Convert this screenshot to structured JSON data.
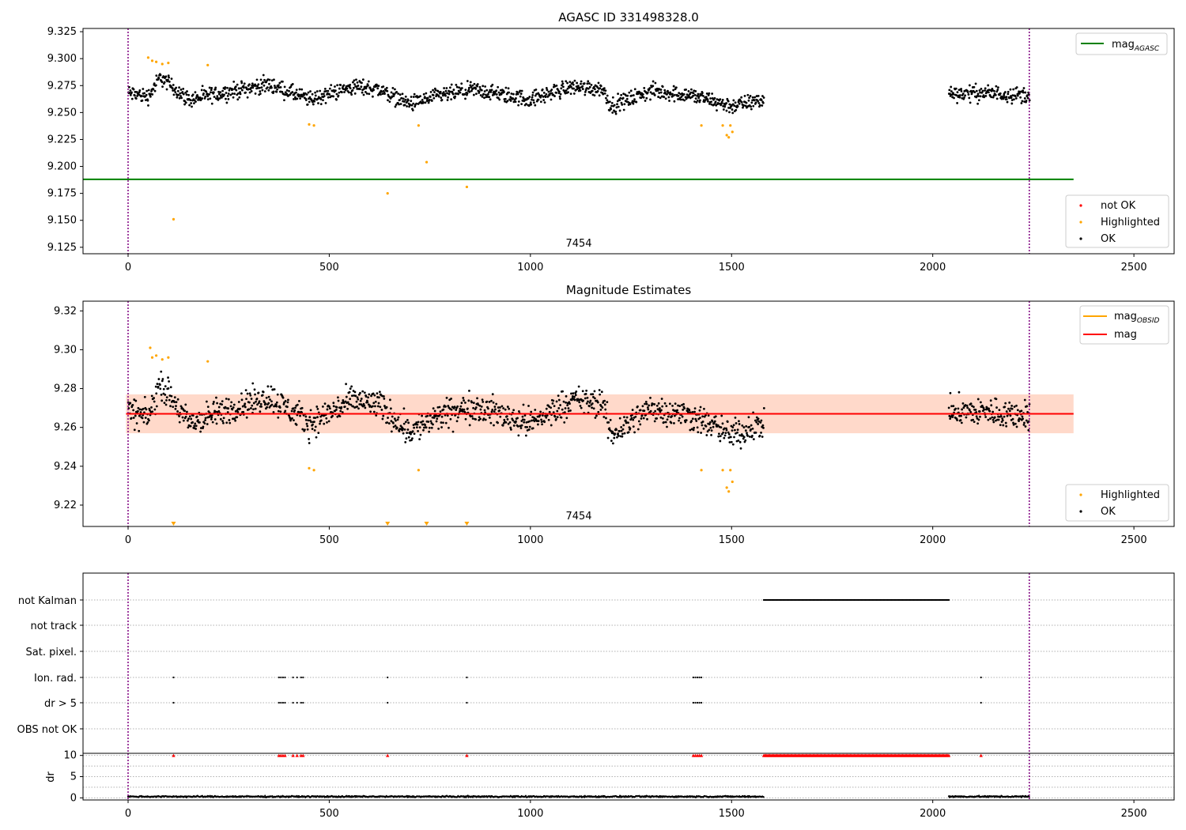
{
  "chart_data": [
    {
      "type": "scatter",
      "title": "AGASC ID 331498328.0",
      "annotation": "7454",
      "xlim": [
        -112,
        2600
      ],
      "ylim": [
        9.119,
        9.328
      ],
      "xticks": [
        "0",
        "500",
        "1000",
        "1500",
        "2000",
        "2500"
      ],
      "yticks": [
        "9.125",
        "9.150",
        "9.175",
        "9.200",
        "9.225",
        "9.250",
        "9.275",
        "9.300",
        "9.325"
      ],
      "grid": false,
      "vlines": [
        0,
        2240
      ],
      "legend_top": {
        "position": "top-right",
        "entries": [
          "mag_AGASC"
        ]
      },
      "legend_bottom": {
        "position": "lower-right",
        "entries": [
          "not OK",
          "Highlighted",
          "OK"
        ]
      },
      "hline": {
        "name": "mag_AGASC",
        "y": 9.188,
        "x_range": [
          -112,
          2350
        ],
        "color": "#008000"
      },
      "series": [
        {
          "name": "OK",
          "color": "#000000",
          "segments": [
            {
              "x_range": [
                0,
                1580
              ],
              "path": [
                [
                  0,
                  9.268
                ],
                [
                  50,
                  9.265
                ],
                [
                  80,
                  9.283
                ],
                [
                  150,
                  9.262
                ],
                [
                  260,
                  9.27
                ],
                [
                  350,
                  9.276
                ],
                [
                  450,
                  9.262
                ],
                [
                  560,
                  9.274
                ],
                [
                  620,
                  9.272
                ],
                [
                  700,
                  9.258
                ],
                [
                  780,
                  9.266
                ],
                [
                  860,
                  9.271
                ],
                [
                  1000,
                  9.262
                ],
                [
                  1100,
                  9.274
                ],
                [
                  1180,
                  9.272
                ],
                [
                  1200,
                  9.256
                ],
                [
                  1300,
                  9.27
                ],
                [
                  1400,
                  9.266
                ],
                [
                  1500,
                  9.256
                ],
                [
                  1580,
                  9.262
                ]
              ],
              "spread": 0.011
            },
            {
              "x_range": [
                2040,
                2240
              ],
              "path": [
                [
                  2040,
                  9.268
                ],
                [
                  2140,
                  9.268
                ],
                [
                  2240,
                  9.266
                ]
              ],
              "spread": 0.011
            }
          ]
        },
        {
          "name": "Highlighted",
          "color": "#ffa500",
          "points": [
            [
              50,
              9.301
            ],
            [
              60,
              9.298
            ],
            [
              70,
              9.297
            ],
            [
              85,
              9.295
            ],
            [
              100,
              9.296
            ],
            [
              113,
              9.151
            ],
            [
              198,
              9.294
            ],
            [
              450,
              9.239
            ],
            [
              462,
              9.238
            ],
            [
              645,
              9.175
            ],
            [
              722,
              9.238
            ],
            [
              742,
              9.204
            ],
            [
              842,
              9.181
            ],
            [
              1425,
              9.238
            ],
            [
              1478,
              9.238
            ],
            [
              1488,
              9.229
            ],
            [
              1493,
              9.227
            ],
            [
              1502,
              9.232
            ],
            [
              1497,
              9.238
            ]
          ]
        },
        {
          "name": "not OK",
          "color": "#ff0000",
          "points": []
        }
      ]
    },
    {
      "type": "scatter",
      "title": "Magnitude Estimates",
      "annotation": "7454",
      "xlim": [
        -112,
        2600
      ],
      "ylim": [
        9.209,
        9.325
      ],
      "xticks": [
        "0",
        "500",
        "1000",
        "1500",
        "2000",
        "2500"
      ],
      "yticks": [
        "9.22",
        "9.24",
        "9.26",
        "9.28",
        "9.30",
        "9.32"
      ],
      "grid": false,
      "vlines": [
        0,
        2240
      ],
      "legend_top": {
        "position": "top-right",
        "entries": [
          "mag_OBSID",
          "mag"
        ]
      },
      "legend_bottom": {
        "position": "lower-right",
        "entries": [
          "Highlighted",
          "OK"
        ]
      },
      "band": {
        "y": [
          9.257,
          9.277
        ],
        "x_range": [
          -5,
          2350
        ],
        "color": "#ffa07a"
      },
      "hline": {
        "name": "mag",
        "y": 9.267,
        "x_range": [
          -5,
          2350
        ],
        "color": "#ff0000"
      },
      "series": [
        {
          "name": "OK",
          "color": "#000000",
          "segments": [
            {
              "x_range": [
                0,
                1580
              ],
              "path": [
                [
                  0,
                  9.268
                ],
                [
                  50,
                  9.265
                ],
                [
                  80,
                  9.283
                ],
                [
                  150,
                  9.262
                ],
                [
                  260,
                  9.27
                ],
                [
                  350,
                  9.276
                ],
                [
                  450,
                  9.262
                ],
                [
                  560,
                  9.274
                ],
                [
                  620,
                  9.272
                ],
                [
                  700,
                  9.258
                ],
                [
                  780,
                  9.266
                ],
                [
                  860,
                  9.271
                ],
                [
                  1000,
                  9.262
                ],
                [
                  1100,
                  9.274
                ],
                [
                  1180,
                  9.272
                ],
                [
                  1200,
                  9.256
                ],
                [
                  1300,
                  9.27
                ],
                [
                  1400,
                  9.266
                ],
                [
                  1500,
                  9.256
                ],
                [
                  1580,
                  9.262
                ]
              ],
              "spread": 0.011
            },
            {
              "x_range": [
                2040,
                2240
              ],
              "path": [
                [
                  2040,
                  9.268
                ],
                [
                  2140,
                  9.268
                ],
                [
                  2240,
                  9.266
                ]
              ],
              "spread": 0.011
            }
          ]
        },
        {
          "name": "Highlighted",
          "color": "#ffa500",
          "points": [
            [
              55,
              9.301
            ],
            [
              60,
              9.296
            ],
            [
              70,
              9.297
            ],
            [
              85,
              9.295
            ],
            [
              100,
              9.296
            ],
            [
              198,
              9.294
            ],
            [
              450,
              9.239
            ],
            [
              462,
              9.238
            ],
            [
              722,
              9.238
            ],
            [
              1425,
              9.238
            ],
            [
              1478,
              9.238
            ],
            [
              1488,
              9.229
            ],
            [
              1493,
              9.227
            ],
            [
              1502,
              9.232
            ],
            [
              1497,
              9.238
            ]
          ]
        },
        {
          "name": "Highlighted (below axis)",
          "color": "#ffa500",
          "marker": "triangle-down",
          "points": [
            [
              113,
              9.209
            ],
            [
              645,
              9.209
            ],
            [
              742,
              9.209
            ],
            [
              842,
              9.209
            ]
          ]
        }
      ]
    },
    {
      "type": "scatter",
      "xlim": [
        -112,
        2600
      ],
      "xticks": [
        "0",
        "500",
        "1000",
        "1500",
        "2000",
        "2500"
      ],
      "vlines": [
        0,
        2240
      ],
      "flag_rows": [
        "not Kalman",
        "not track",
        "Sat. pixel.",
        "Ion. rad.",
        "dr > 5",
        "OBS not OK"
      ],
      "flags": {
        "not Kalman": {
          "ranges": [
            [
              1580,
              2040
            ]
          ],
          "points": []
        },
        "not track": {
          "ranges": [],
          "points": []
        },
        "Sat. pixel.": {
          "ranges": [],
          "points": []
        },
        "Ion. rad.": {
          "ranges": [],
          "points": [
            113,
            375,
            380,
            385,
            390,
            410,
            420,
            430,
            435,
            645,
            842,
            1405,
            1410,
            1415,
            1420,
            1425,
            2120
          ]
        },
        "dr > 5": {
          "ranges": [],
          "points": [
            113,
            375,
            380,
            385,
            390,
            410,
            420,
            430,
            435,
            645,
            842,
            1405,
            1410,
            1415,
            1420,
            1425,
            2120
          ]
        },
        "OBS not OK": {
          "ranges": [],
          "points": []
        }
      }
    },
    {
      "type": "scatter",
      "ylabel": "dr",
      "xlim": [
        -112,
        2600
      ],
      "ylim": [
        -0.5,
        10.5
      ],
      "xticks": [
        "0",
        "500",
        "1000",
        "1500",
        "2000",
        "2500"
      ],
      "yticks": [
        "0",
        "5",
        "10"
      ],
      "grid": true,
      "vlines": [
        0,
        2240
      ],
      "series": [
        {
          "name": "dr",
          "color": "#000000",
          "ranges": [
            [
              0,
              1580
            ],
            [
              2040,
              2240
            ]
          ],
          "y": 0.3
        },
        {
          "name": "dr clipped",
          "color": "#ff0000",
          "marker": "triangle-up",
          "ranges": [
            [
              1580,
              2040
            ]
          ],
          "points": [
            113,
            375,
            380,
            385,
            390,
            410,
            420,
            430,
            435,
            645,
            842,
            1405,
            1410,
            1415,
            1420,
            1425,
            2120
          ],
          "y": 10
        }
      ]
    }
  ]
}
